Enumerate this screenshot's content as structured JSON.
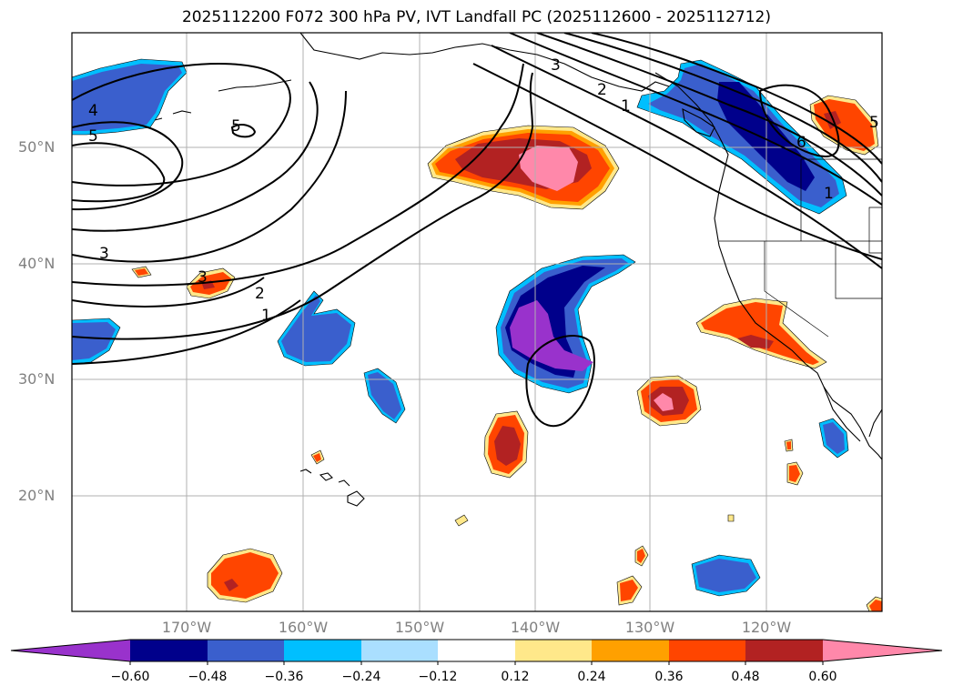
{
  "title": "2025112200 F072 300 hPa PV, IVT Landfall PC (2025112600 - 2025112712)",
  "map": {
    "lat_labels": [
      "50°N",
      "40°N",
      "30°N",
      "20°N"
    ],
    "lon_labels": [
      "170°W",
      "160°W",
      "150°W",
      "140°W",
      "130°W",
      "120°W"
    ],
    "grid_lines": true,
    "frame_color": "#000000",
    "land_outline_color": "#000000"
  },
  "contours": {
    "labels": [
      "3",
      "2",
      "1",
      "4",
      "5",
      "5",
      "3",
      "3",
      "2",
      "1",
      "6",
      "1",
      "5"
    ]
  },
  "colorbar": {
    "tick_labels": [
      "−0.60",
      "−0.48",
      "−0.36",
      "−0.24",
      "−0.12",
      "0.12",
      "0.24",
      "0.36",
      "0.48",
      "0.60"
    ],
    "colors": [
      "#9932cc",
      "#00008b",
      "#3a5fcd",
      "#00bfff",
      "#aadfff",
      "#ffffff",
      "#ffe88a",
      "#ffa000",
      "#ff4500",
      "#b22222",
      "#ff88aa"
    ]
  },
  "shading": {
    "negative_colors": {
      "outer": "#00bfff",
      "mid": "#3a5fcd",
      "inner": "#00008b",
      "core": "#9932cc"
    },
    "positive_colors": {
      "outer": "#ffe88a",
      "edge": "#ffa000",
      "mid": "#ff4500",
      "inner": "#b22222",
      "core": "#ff88aa"
    }
  }
}
